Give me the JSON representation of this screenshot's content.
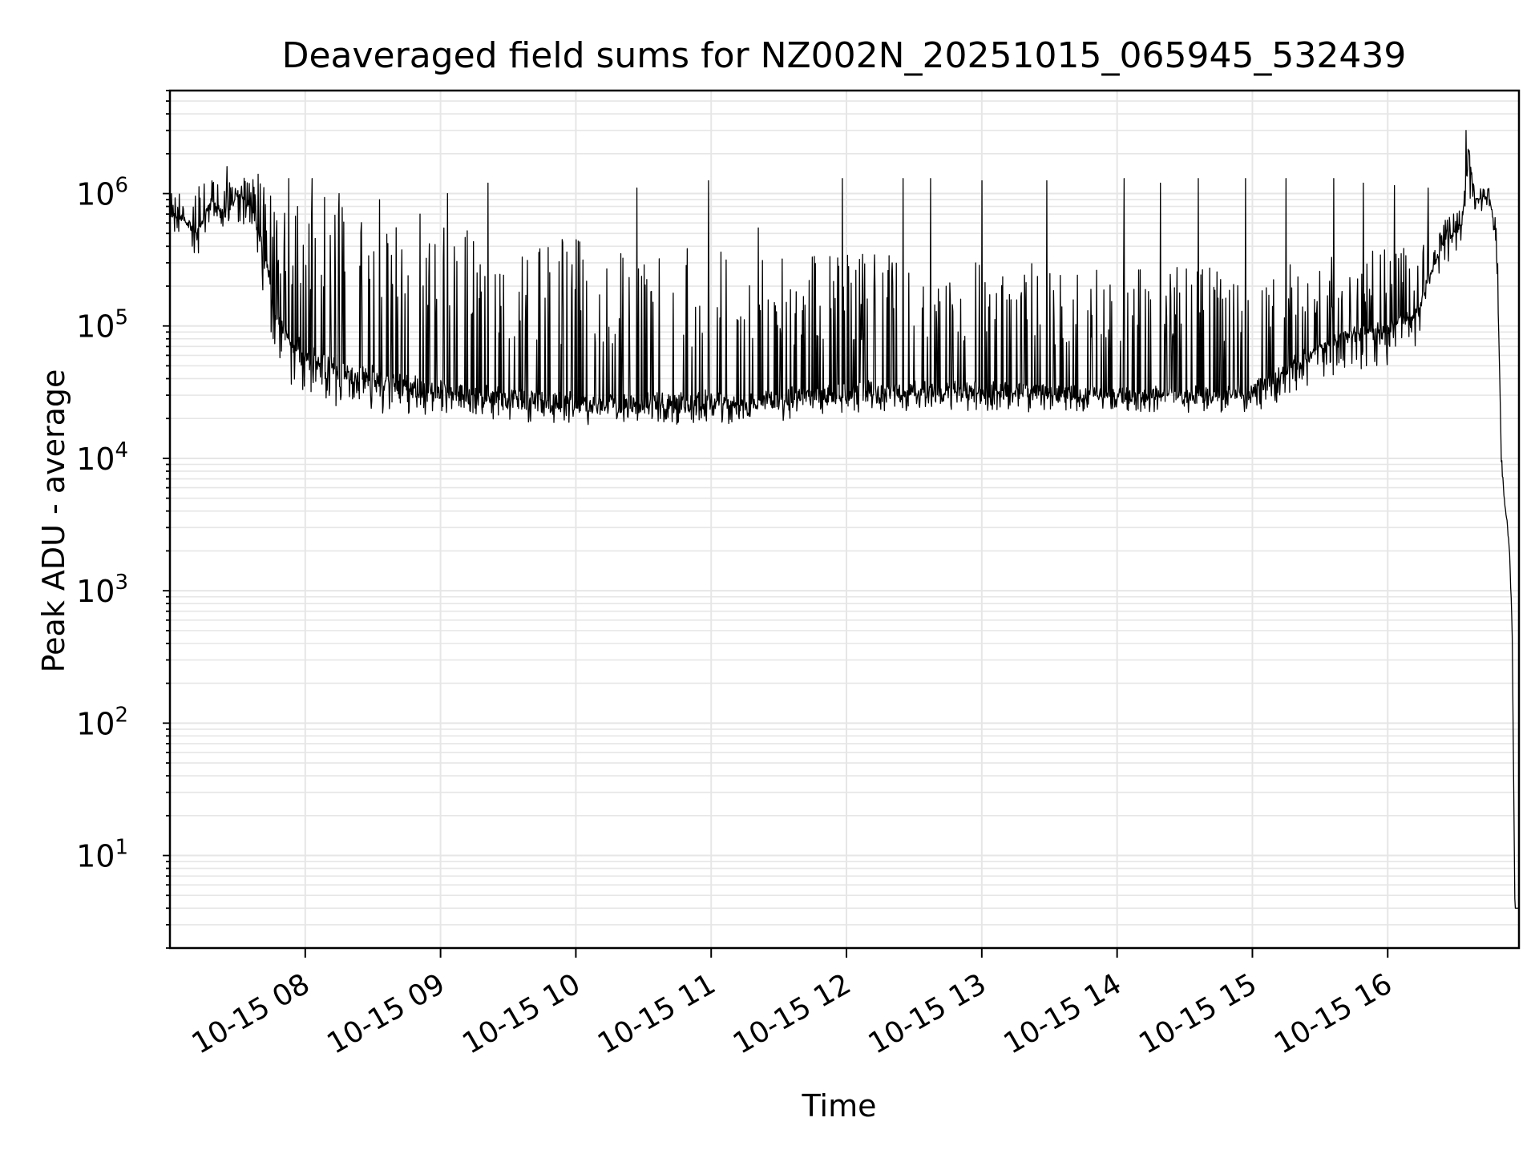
{
  "chart_data": {
    "type": "line",
    "title": "Deaveraged field sums for NZ002N_20251015_065945_532439",
    "xlabel": "Time",
    "ylabel": "Peak ADU - average",
    "yscale": "log",
    "ylim": [
      2,
      6000000
    ],
    "xlim_hours": [
      7.0,
      16.97
    ],
    "grid": true,
    "line_color": "#000000",
    "x_ticks": [
      {
        "hour": 8,
        "label": "10-15 08"
      },
      {
        "hour": 9,
        "label": "10-15 09"
      },
      {
        "hour": 10,
        "label": "10-15 10"
      },
      {
        "hour": 11,
        "label": "10-15 11"
      },
      {
        "hour": 12,
        "label": "10-15 12"
      },
      {
        "hour": 13,
        "label": "10-15 13"
      },
      {
        "hour": 14,
        "label": "10-15 14"
      },
      {
        "hour": 15,
        "label": "10-15 15"
      },
      {
        "hour": 16,
        "label": "10-15 16"
      }
    ],
    "y_ticks": [
      {
        "value": 10,
        "base": "10",
        "exp": "1"
      },
      {
        "value": 100,
        "base": "10",
        "exp": "2"
      },
      {
        "value": 1000,
        "base": "10",
        "exp": "3"
      },
      {
        "value": 10000,
        "base": "10",
        "exp": "4"
      },
      {
        "value": 100000,
        "base": "10",
        "exp": "5"
      },
      {
        "value": 1000000,
        "base": "10",
        "exp": "6"
      }
    ],
    "series": [
      {
        "name": "field sums",
        "x_hours": [
          7.0,
          7.1,
          7.2,
          7.3,
          7.4,
          7.5,
          7.6,
          7.7,
          7.8,
          8.0,
          8.2,
          8.5,
          9.0,
          9.5,
          10.0,
          10.5,
          11.0,
          11.5,
          12.0,
          12.5,
          13.0,
          13.5,
          14.0,
          14.5,
          15.0,
          15.3,
          15.6,
          16.0,
          16.2,
          16.4,
          16.55,
          16.6,
          16.65,
          16.75,
          16.8,
          16.82,
          16.84,
          16.86,
          16.88,
          16.9,
          16.92,
          16.94,
          16.95,
          16.97
        ],
        "baseline": [
          700000,
          650000,
          500000,
          900000,
          700000,
          1000000,
          800000,
          350000,
          100000,
          60000,
          50000,
          40000,
          33000,
          28000,
          26000,
          26000,
          27000,
          28000,
          32000,
          33000,
          33000,
          31000,
          30000,
          30000,
          32000,
          50000,
          80000,
          100000,
          120000,
          400000,
          600000,
          2000000,
          900000,
          950000,
          500000,
          100000,
          10000,
          5000,
          3500,
          2000,
          500,
          4,
          4,
          4
        ],
        "upper_envelope": [
          1100000,
          1000000,
          1200000,
          1500000,
          1400000,
          1400000,
          1300000,
          1200000,
          1100000,
          1200000,
          1100000,
          900000,
          700000,
          500000,
          450000,
          400000,
          400000,
          400000,
          350000,
          350000,
          300000,
          300000,
          280000,
          280000,
          280000,
          300000,
          350000,
          380000,
          400000,
          600000,
          800000,
          3000000,
          1100000,
          1100000,
          700000,
          200000,
          12000,
          6000,
          4000,
          2500,
          600,
          4,
          4,
          4
        ],
        "lower_envelope": [
          500000,
          450000,
          300000,
          600000,
          500000,
          600000,
          500000,
          150000,
          40000,
          30000,
          25000,
          22000,
          21000,
          19000,
          18000,
          18000,
          18000,
          19000,
          22000,
          23000,
          23000,
          22000,
          22000,
          22000,
          22000,
          30000,
          40000,
          50000,
          60000,
          250000,
          400000,
          900000,
          700000,
          800000,
          300000,
          50000,
          3000,
          3000,
          2500,
          1500,
          300,
          4,
          4,
          4
        ],
        "spikes": [
          {
            "hour": 7.42,
            "value": 1600000
          },
          {
            "hour": 7.65,
            "value": 1400000
          },
          {
            "hour": 7.88,
            "value": 1300000
          },
          {
            "hour": 8.05,
            "value": 1300000
          },
          {
            "hour": 8.25,
            "value": 1000000
          },
          {
            "hour": 8.55,
            "value": 900000
          },
          {
            "hour": 8.85,
            "value": 700000
          },
          {
            "hour": 9.05,
            "value": 1000000
          },
          {
            "hour": 9.35,
            "value": 1200000
          },
          {
            "hour": 9.9,
            "value": 450000
          },
          {
            "hour": 10.45,
            "value": 1100000
          },
          {
            "hour": 10.98,
            "value": 1250000
          },
          {
            "hour": 11.35,
            "value": 550000
          },
          {
            "hour": 11.97,
            "value": 1300000
          },
          {
            "hour": 12.42,
            "value": 1300000
          },
          {
            "hour": 12.62,
            "value": 1300000
          },
          {
            "hour": 13.0,
            "value": 1250000
          },
          {
            "hour": 13.48,
            "value": 1250000
          },
          {
            "hour": 14.05,
            "value": 1300000
          },
          {
            "hour": 14.32,
            "value": 1200000
          },
          {
            "hour": 14.6,
            "value": 1300000
          },
          {
            "hour": 14.95,
            "value": 1300000
          },
          {
            "hour": 15.25,
            "value": 1300000
          },
          {
            "hour": 15.6,
            "value": 1300000
          },
          {
            "hour": 15.82,
            "value": 1200000
          },
          {
            "hour": 16.05,
            "value": 1150000
          },
          {
            "hour": 16.3,
            "value": 1100000
          },
          {
            "hour": 16.58,
            "value": 3000000
          }
        ]
      }
    ]
  }
}
